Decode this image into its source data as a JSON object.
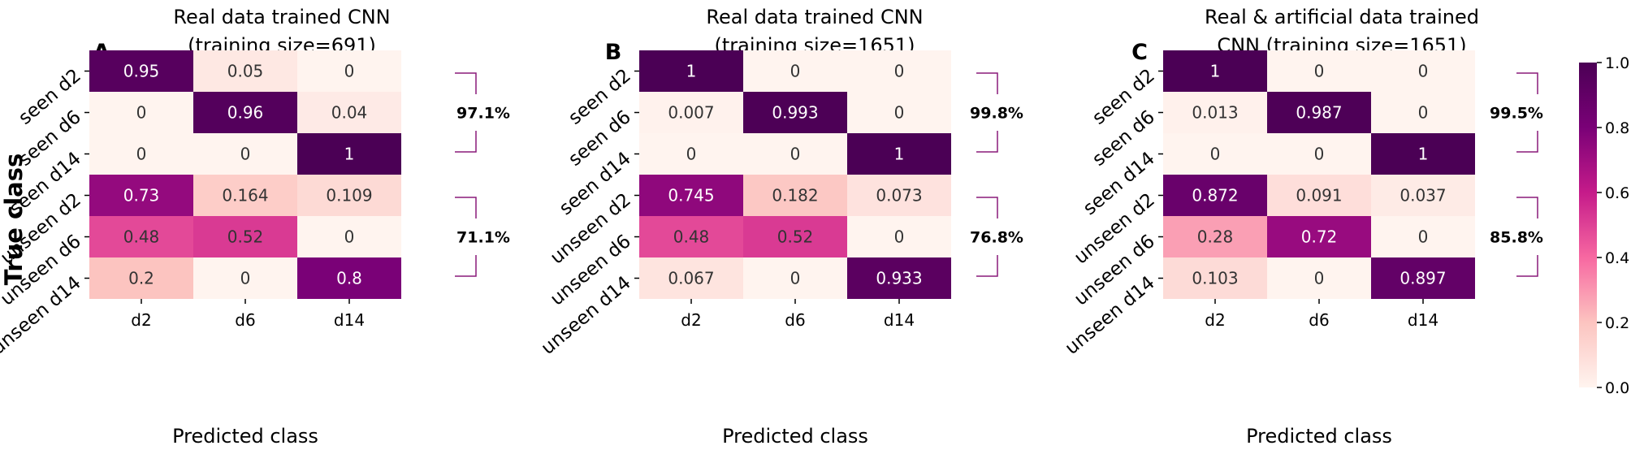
{
  "figure": {
    "y_axis_label": "True class",
    "colorbar": {
      "ticks": [
        "0.0",
        "0.2",
        "0.4",
        "0.6",
        "0.8",
        "1.0"
      ],
      "min": 0,
      "max": 1,
      "colors": [
        "#fff4ef",
        "#fcc4c0",
        "#f768a1",
        "#c51b8a",
        "#7a0177",
        "#4b0055"
      ]
    }
  },
  "chart_data": [
    {
      "type": "heatmap",
      "letter": "A",
      "title_lines": [
        "Real data trained CNN",
        "(training size=691)"
      ],
      "xlabel": "Predicted class",
      "x_categories": [
        "d2",
        "d6",
        "d14"
      ],
      "y_categories": [
        "seen d2",
        "seen d6",
        "seen d14",
        "unseen d2",
        "unseen d6",
        "unseen d14"
      ],
      "values": [
        [
          0.95,
          0.05,
          0
        ],
        [
          0,
          0.96,
          0.04
        ],
        [
          0,
          0,
          1
        ],
        [
          0.73,
          0.164,
          0.109
        ],
        [
          0.48,
          0.52,
          0
        ],
        [
          0.2,
          0,
          0.8
        ]
      ],
      "labels": [
        [
          "0.95",
          "0.05",
          "0"
        ],
        [
          "0",
          "0.96",
          "0.04"
        ],
        [
          "0",
          "0",
          "1"
        ],
        [
          "0.73",
          "0.164",
          "0.109"
        ],
        [
          "0.48",
          "0.52",
          "0"
        ],
        [
          "0.2",
          "0",
          "0.8"
        ]
      ],
      "accuracy_seen": "97.1%",
      "accuracy_unseen": "71.1%"
    },
    {
      "type": "heatmap",
      "letter": "B",
      "title_lines": [
        "Real data trained CNN",
        "(training size=1651)"
      ],
      "xlabel": "Predicted class",
      "x_categories": [
        "d2",
        "d6",
        "d14"
      ],
      "y_categories": [
        "seen d2",
        "seen d6",
        "seen d14",
        "unseen d2",
        "unseen d6",
        "unseen d14"
      ],
      "values": [
        [
          1,
          0,
          0
        ],
        [
          0.007,
          0.993,
          0
        ],
        [
          0,
          0,
          1
        ],
        [
          0.745,
          0.182,
          0.073
        ],
        [
          0.48,
          0.52,
          0
        ],
        [
          0.067,
          0,
          0.933
        ]
      ],
      "labels": [
        [
          "1",
          "0",
          "0"
        ],
        [
          "0.007",
          "0.993",
          "0"
        ],
        [
          "0",
          "0",
          "1"
        ],
        [
          "0.745",
          "0.182",
          "0.073"
        ],
        [
          "0.48",
          "0.52",
          "0"
        ],
        [
          "0.067",
          "0",
          "0.933"
        ]
      ],
      "accuracy_seen": "99.8%",
      "accuracy_unseen": "76.8%"
    },
    {
      "type": "heatmap",
      "letter": "C",
      "title_lines": [
        "Real & artificial data trained",
        "CNN (training size=1651)"
      ],
      "xlabel": "Predicted class",
      "x_categories": [
        "d2",
        "d6",
        "d14"
      ],
      "y_categories": [
        "seen d2",
        "seen d6",
        "seen d14",
        "unseen d2",
        "unseen d6",
        "unseen d14"
      ],
      "values": [
        [
          1,
          0,
          0
        ],
        [
          0.013,
          0.987,
          0
        ],
        [
          0,
          0,
          1
        ],
        [
          0.872,
          0.091,
          0.037
        ],
        [
          0.28,
          0.72,
          0
        ],
        [
          0.103,
          0,
          0.897
        ]
      ],
      "labels": [
        [
          "1",
          "0",
          "0"
        ],
        [
          "0.013",
          "0.987",
          "0"
        ],
        [
          "0",
          "0",
          "1"
        ],
        [
          "0.872",
          "0.091",
          "0.037"
        ],
        [
          "0.28",
          "0.72",
          "0"
        ],
        [
          "0.103",
          "0",
          "0.897"
        ]
      ],
      "accuracy_seen": "99.5%",
      "accuracy_unseen": "85.8%"
    }
  ]
}
